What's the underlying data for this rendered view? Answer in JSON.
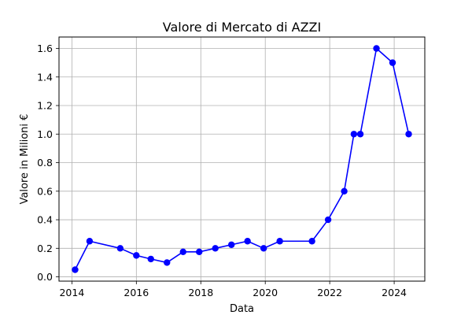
{
  "chart_data": {
    "type": "line",
    "title": "Valore di Mercato di AZZI",
    "xlabel": "Data",
    "ylabel": "Valore in Milioni €",
    "x_ticks": [
      2014,
      2016,
      2018,
      2020,
      2022,
      2024
    ],
    "y_ticks": [
      "0.0",
      "0.2",
      "0.4",
      "0.6",
      "0.8",
      "1.0",
      "1.2",
      "1.4",
      "1.6"
    ],
    "xlim": [
      2013.6,
      2024.95
    ],
    "ylim": [
      -0.03,
      1.68
    ],
    "grid": true,
    "legend": "none",
    "colors": {
      "line": "#0000ff",
      "marker": "#0000ff",
      "grid": "#b0b0b0"
    },
    "series": [
      {
        "points": [
          {
            "x": 2014.1,
            "y": 0.05
          },
          {
            "x": 2014.55,
            "y": 0.25
          },
          {
            "x": 2015.5,
            "y": 0.2
          },
          {
            "x": 2016.0,
            "y": 0.15
          },
          {
            "x": 2016.45,
            "y": 0.125
          },
          {
            "x": 2016.95,
            "y": 0.1
          },
          {
            "x": 2017.45,
            "y": 0.175
          },
          {
            "x": 2017.95,
            "y": 0.175
          },
          {
            "x": 2018.45,
            "y": 0.2
          },
          {
            "x": 2018.95,
            "y": 0.225
          },
          {
            "x": 2019.45,
            "y": 0.25
          },
          {
            "x": 2019.95,
            "y": 0.2
          },
          {
            "x": 2020.45,
            "y": 0.25
          },
          {
            "x": 2021.45,
            "y": 0.25
          },
          {
            "x": 2021.95,
            "y": 0.4
          },
          {
            "x": 2022.45,
            "y": 0.6
          },
          {
            "x": 2022.75,
            "y": 1.0
          },
          {
            "x": 2022.95,
            "y": 1.0
          },
          {
            "x": 2023.45,
            "y": 1.6
          },
          {
            "x": 2023.95,
            "y": 1.5
          },
          {
            "x": 2024.45,
            "y": 1.0
          }
        ]
      }
    ]
  }
}
